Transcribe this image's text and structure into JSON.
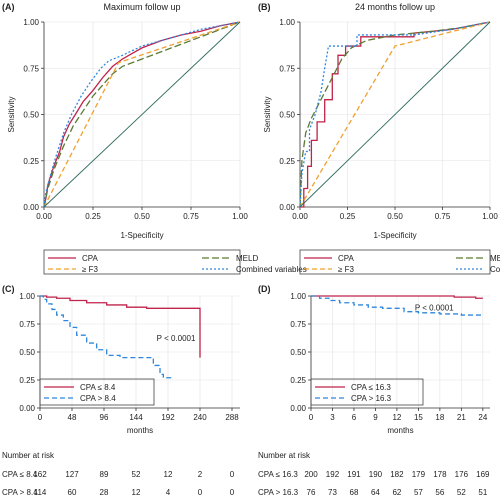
{
  "colors": {
    "cpa": "#c0234b",
    "f3": "#f0a030",
    "meld": "#5a7a34",
    "combined": "#2e86de",
    "diag": "#2e6b5e",
    "km_low": "#c0234b",
    "km_high": "#2e86de"
  },
  "chart_data": [
    {
      "panel": "(A)",
      "type": "line",
      "title": "Maximum follow up",
      "xlabel": "1-Specificity",
      "ylabel": "Sensitivity",
      "xlim": [
        0,
        1
      ],
      "ylim": [
        0,
        1
      ],
      "xticks": [
        "0.00",
        "0.25",
        "0.50",
        "0.75",
        "1.00"
      ],
      "yticks": [
        "0.00",
        "0.25",
        "0.50",
        "0.75",
        "1.00"
      ],
      "grid": true,
      "legend_position": "bottom",
      "series": [
        {
          "name": "CPA",
          "color_key": "cpa",
          "dash": "",
          "points": [
            [
              0,
              0
            ],
            [
              0.01,
              0.05
            ],
            [
              0.02,
              0.12
            ],
            [
              0.05,
              0.22
            ],
            [
              0.08,
              0.3
            ],
            [
              0.1,
              0.38
            ],
            [
              0.13,
              0.45
            ],
            [
              0.16,
              0.5
            ],
            [
              0.2,
              0.57
            ],
            [
              0.25,
              0.63
            ],
            [
              0.3,
              0.7
            ],
            [
              0.35,
              0.76
            ],
            [
              0.4,
              0.8
            ],
            [
              0.5,
              0.86
            ],
            [
              0.6,
              0.9
            ],
            [
              0.7,
              0.93
            ],
            [
              0.8,
              0.95
            ],
            [
              0.9,
              0.98
            ],
            [
              1,
              1
            ]
          ]
        },
        {
          "name": "MELD",
          "color_key": "meld",
          "dash": "7,3",
          "points": [
            [
              0,
              0
            ],
            [
              0.02,
              0.1
            ],
            [
              0.05,
              0.2
            ],
            [
              0.1,
              0.33
            ],
            [
              0.15,
              0.44
            ],
            [
              0.2,
              0.52
            ],
            [
              0.25,
              0.6
            ],
            [
              0.3,
              0.66
            ],
            [
              0.35,
              0.72
            ],
            [
              0.4,
              0.76
            ],
            [
              0.5,
              0.8
            ],
            [
              0.6,
              0.84
            ],
            [
              0.7,
              0.88
            ],
            [
              0.8,
              0.92
            ],
            [
              0.9,
              0.96
            ],
            [
              1,
              1
            ]
          ]
        },
        {
          "name": "≥ F3",
          "color_key": "f3",
          "dash": "5,3",
          "points": [
            [
              0,
              0
            ],
            [
              0.38,
              0.78
            ],
            [
              1,
              1
            ]
          ]
        },
        {
          "name": "Combined variables",
          "color_key": "combined",
          "dash": "2,2",
          "points": [
            [
              0,
              0
            ],
            [
              0.01,
              0.08
            ],
            [
              0.03,
              0.16
            ],
            [
              0.06,
              0.27
            ],
            [
              0.1,
              0.4
            ],
            [
              0.14,
              0.5
            ],
            [
              0.19,
              0.6
            ],
            [
              0.24,
              0.68
            ],
            [
              0.29,
              0.75
            ],
            [
              0.33,
              0.79
            ],
            [
              0.4,
              0.82
            ],
            [
              0.5,
              0.87
            ],
            [
              0.6,
              0.9
            ],
            [
              0.7,
              0.93
            ],
            [
              0.8,
              0.96
            ],
            [
              0.9,
              0.98
            ],
            [
              1,
              1
            ]
          ]
        },
        {
          "name": "",
          "color_key": "diag",
          "dash": "",
          "points": [
            [
              0,
              0
            ],
            [
              1,
              1
            ]
          ]
        }
      ]
    },
    {
      "panel": "(B)",
      "type": "line",
      "title": "24 months follow up",
      "xlabel": "1-Specificity",
      "ylabel": "Sensitivity",
      "xlim": [
        0,
        1
      ],
      "ylim": [
        0,
        1
      ],
      "xticks": [
        "0.00",
        "0.25",
        "0.50",
        "0.75",
        "1.00"
      ],
      "yticks": [
        "0.00",
        "0.25",
        "0.50",
        "0.75",
        "1.00"
      ],
      "grid": true,
      "legend_position": "bottom",
      "series": [
        {
          "name": "CPA",
          "color_key": "cpa",
          "dash": "",
          "points": [
            [
              0,
              0
            ],
            [
              0.02,
              0
            ],
            [
              0.02,
              0.1
            ],
            [
              0.04,
              0.1
            ],
            [
              0.04,
              0.22
            ],
            [
              0.06,
              0.22
            ],
            [
              0.06,
              0.36
            ],
            [
              0.09,
              0.36
            ],
            [
              0.09,
              0.46
            ],
            [
              0.13,
              0.46
            ],
            [
              0.13,
              0.58
            ],
            [
              0.17,
              0.58
            ],
            [
              0.17,
              0.72
            ],
            [
              0.2,
              0.72
            ],
            [
              0.2,
              0.82
            ],
            [
              0.24,
              0.82
            ],
            [
              0.24,
              0.87
            ],
            [
              0.32,
              0.87
            ],
            [
              0.32,
              0.92
            ],
            [
              0.6,
              0.92
            ],
            [
              0.6,
              0.94
            ],
            [
              0.8,
              0.96
            ],
            [
              1,
              1
            ]
          ]
        },
        {
          "name": "MELD",
          "color_key": "meld",
          "dash": "7,3",
          "points": [
            [
              0,
              0
            ],
            [
              0.01,
              0.25
            ],
            [
              0.03,
              0.4
            ],
            [
              0.06,
              0.48
            ],
            [
              0.1,
              0.56
            ],
            [
              0.14,
              0.64
            ],
            [
              0.18,
              0.72
            ],
            [
              0.22,
              0.8
            ],
            [
              0.27,
              0.86
            ],
            [
              0.35,
              0.9
            ],
            [
              0.5,
              0.93
            ],
            [
              0.7,
              0.95
            ],
            [
              0.85,
              0.97
            ],
            [
              1,
              1
            ]
          ]
        },
        {
          "name": "≥ F3",
          "color_key": "f3",
          "dash": "5,3",
          "points": [
            [
              0,
              0
            ],
            [
              0.5,
              0.87
            ],
            [
              1,
              1
            ]
          ]
        },
        {
          "name": "Combined variables",
          "color_key": "combined",
          "dash": "2,2",
          "points": [
            [
              0,
              0
            ],
            [
              0.01,
              0.18
            ],
            [
              0.03,
              0.3
            ],
            [
              0.05,
              0.3
            ],
            [
              0.05,
              0.42
            ],
            [
              0.08,
              0.5
            ],
            [
              0.11,
              0.62
            ],
            [
              0.13,
              0.75
            ],
            [
              0.15,
              0.87
            ],
            [
              0.3,
              0.87
            ],
            [
              0.3,
              0.93
            ],
            [
              0.6,
              0.93
            ],
            [
              0.8,
              0.96
            ],
            [
              1,
              1
            ]
          ]
        },
        {
          "name": "",
          "color_key": "diag",
          "dash": "",
          "points": [
            [
              0,
              0
            ],
            [
              1,
              1
            ]
          ]
        }
      ]
    },
    {
      "panel": "(C)",
      "type": "line",
      "title": "",
      "xlabel": "months",
      "ylabel": "",
      "xlim": [
        0,
        300
      ],
      "ylim": [
        0,
        1
      ],
      "xticks": [
        "0",
        "48",
        "96",
        "144",
        "192",
        "240",
        "288"
      ],
      "yticks": [
        "0.00",
        "0.25",
        "0.50",
        "0.75",
        "1.00"
      ],
      "grid": true,
      "annotation": "P < 0.0001",
      "annotation_at": [
        175,
        0.6
      ],
      "legend_position": "bottom-left",
      "series": [
        {
          "name": "CPA ≤ 8.4",
          "color_key": "km_low",
          "dash": "",
          "points": [
            [
              0,
              1
            ],
            [
              10,
              1
            ],
            [
              10,
              0.99
            ],
            [
              25,
              0.99
            ],
            [
              25,
              0.98
            ],
            [
              45,
              0.98
            ],
            [
              45,
              0.96
            ],
            [
              70,
              0.96
            ],
            [
              70,
              0.94
            ],
            [
              100,
              0.94
            ],
            [
              100,
              0.92
            ],
            [
              130,
              0.92
            ],
            [
              130,
              0.9
            ],
            [
              160,
              0.9
            ],
            [
              160,
              0.89
            ],
            [
              240,
              0.89
            ],
            [
              240,
              0.45
            ]
          ]
        },
        {
          "name": "CPA > 8.4",
          "color_key": "km_high",
          "dash": "5,3",
          "points": [
            [
              0,
              1
            ],
            [
              5,
              1
            ],
            [
              5,
              0.97
            ],
            [
              10,
              0.97
            ],
            [
              10,
              0.93
            ],
            [
              18,
              0.93
            ],
            [
              18,
              0.88
            ],
            [
              25,
              0.88
            ],
            [
              25,
              0.83
            ],
            [
              35,
              0.83
            ],
            [
              35,
              0.78
            ],
            [
              45,
              0.78
            ],
            [
              45,
              0.72
            ],
            [
              55,
              0.72
            ],
            [
              55,
              0.65
            ],
            [
              70,
              0.65
            ],
            [
              70,
              0.58
            ],
            [
              85,
              0.58
            ],
            [
              85,
              0.52
            ],
            [
              100,
              0.52
            ],
            [
              100,
              0.47
            ],
            [
              120,
              0.47
            ],
            [
              120,
              0.45
            ],
            [
              170,
              0.45
            ],
            [
              170,
              0.38
            ],
            [
              180,
              0.38
            ],
            [
              180,
              0.3
            ],
            [
              185,
              0.3
            ],
            [
              185,
              0.27
            ],
            [
              200,
              0.27
            ]
          ]
        }
      ],
      "risk_table": {
        "header": "Number at risk",
        "rows": [
          {
            "label": "CPA ≤ 8.4",
            "values": [
              "162",
              "127",
              "89",
              "52",
              "12",
              "2",
              "0"
            ]
          },
          {
            "label": "CPA > 8.4",
            "values": [
              "114",
              "60",
              "28",
              "12",
              "4",
              "0",
              "0"
            ]
          }
        ]
      }
    },
    {
      "panel": "(D)",
      "type": "line",
      "title": "",
      "xlabel": "months",
      "ylabel": "",
      "xlim": [
        0,
        25
      ],
      "ylim": [
        0,
        1
      ],
      "xticks": [
        "0",
        "3",
        "6",
        "9",
        "12",
        "15",
        "18",
        "21",
        "24"
      ],
      "yticks": [
        "0.00",
        "0.25",
        "0.50",
        "0.75",
        "1.00"
      ],
      "grid": true,
      "annotation": "P < 0.0001",
      "annotation_at": [
        14.5,
        0.87
      ],
      "legend_position": "bottom-left",
      "series": [
        {
          "name": "CPA ≤ 16.3",
          "color_key": "km_low",
          "dash": "",
          "points": [
            [
              0,
              1
            ],
            [
              20,
              1
            ],
            [
              20,
              0.99
            ],
            [
              23,
              0.99
            ],
            [
              23,
              0.98
            ],
            [
              24,
              0.98
            ]
          ]
        },
        {
          "name": "CPA > 16.3",
          "color_key": "km_high",
          "dash": "5,3",
          "points": [
            [
              0,
              1
            ],
            [
              1.2,
              1
            ],
            [
              1.2,
              0.98
            ],
            [
              2.5,
              0.98
            ],
            [
              2.5,
              0.96
            ],
            [
              4,
              0.96
            ],
            [
              4,
              0.94
            ],
            [
              6,
              0.94
            ],
            [
              6,
              0.92
            ],
            [
              8,
              0.92
            ],
            [
              8,
              0.9
            ],
            [
              10,
              0.9
            ],
            [
              10,
              0.89
            ],
            [
              13,
              0.89
            ],
            [
              13,
              0.86
            ],
            [
              15,
              0.86
            ],
            [
              15,
              0.85
            ],
            [
              18,
              0.85
            ],
            [
              18,
              0.84
            ],
            [
              21,
              0.84
            ],
            [
              21,
              0.83
            ],
            [
              24,
              0.83
            ]
          ]
        }
      ],
      "risk_table": {
        "header": "Number at risk",
        "rows": [
          {
            "label": "CPA ≤ 16.3",
            "values": [
              "200",
              "192",
              "191",
              "190",
              "182",
              "179",
              "178",
              "176",
              "169"
            ]
          },
          {
            "label": "CPA > 16.3",
            "values": [
              "76",
              "73",
              "68",
              "64",
              "62",
              "57",
              "56",
              "52",
              "51"
            ]
          }
        ]
      }
    }
  ]
}
